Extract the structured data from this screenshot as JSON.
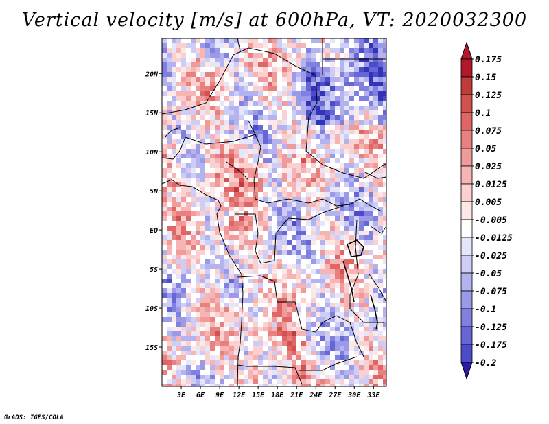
{
  "title": "Vertical velocity [m/s] at 600hPa, VT: 2020032300",
  "credit": "GrADS: IGES/COLA",
  "chart_data": {
    "type": "heatmap",
    "variable": "Vertical velocity",
    "units": "m/s",
    "level": "600hPa",
    "valid_time": "2020032300",
    "xlim": [
      0,
      35
    ],
    "ylim": [
      -20,
      24.5
    ],
    "x_ticks": [
      {
        "value": 3,
        "label": "3E"
      },
      {
        "value": 6,
        "label": "6E"
      },
      {
        "value": 9,
        "label": "9E"
      },
      {
        "value": 12,
        "label": "12E"
      },
      {
        "value": 15,
        "label": "15E"
      },
      {
        "value": 18,
        "label": "18E"
      },
      {
        "value": 21,
        "label": "21E"
      },
      {
        "value": 24,
        "label": "24E"
      },
      {
        "value": 27,
        "label": "27E"
      },
      {
        "value": 30,
        "label": "30E"
      },
      {
        "value": 33,
        "label": "33E"
      }
    ],
    "y_ticks": [
      {
        "value": 20,
        "label": "20N"
      },
      {
        "value": 15,
        "label": "15N"
      },
      {
        "value": 10,
        "label": "10N"
      },
      {
        "value": 5,
        "label": "5N"
      },
      {
        "value": 0,
        "label": "EQ"
      },
      {
        "value": -5,
        "label": "5S"
      },
      {
        "value": -10,
        "label": "10S"
      },
      {
        "value": -15,
        "label": "15S"
      }
    ],
    "colorbar": {
      "levels": [
        {
          "label": "0.175",
          "color": "#b2182b"
        },
        {
          "label": "0.15",
          "color": "#c23b3b"
        },
        {
          "label": "0.125",
          "color": "#d35050"
        },
        {
          "label": "0.1",
          "color": "#e06666"
        },
        {
          "label": "0.075",
          "color": "#e88080"
        },
        {
          "label": "0.05",
          "color": "#f09a9a"
        },
        {
          "label": "0.025",
          "color": "#f6b4b4"
        },
        {
          "label": "0.0125",
          "color": "#fad0d0"
        },
        {
          "label": "0.005",
          "color": "#fde8e8"
        },
        {
          "label": "-0.005",
          "color": "#ffffff"
        },
        {
          "label": "-0.0125",
          "color": "#e6e6fb"
        },
        {
          "label": "-0.025",
          "color": "#cdcdf6"
        },
        {
          "label": "-0.05",
          "color": "#b3b3f0"
        },
        {
          "label": "-0.075",
          "color": "#9a9ae8"
        },
        {
          "label": "-0.1",
          "color": "#8080df"
        },
        {
          "label": "-0.125",
          "color": "#6666d6"
        },
        {
          "label": "-0.175",
          "color": "#4c4cc8"
        },
        {
          "label": "-0.2",
          "color": "#3333b8"
        }
      ],
      "top_color": "#b2182b",
      "bottom_color": "#2a1aa8"
    }
  }
}
